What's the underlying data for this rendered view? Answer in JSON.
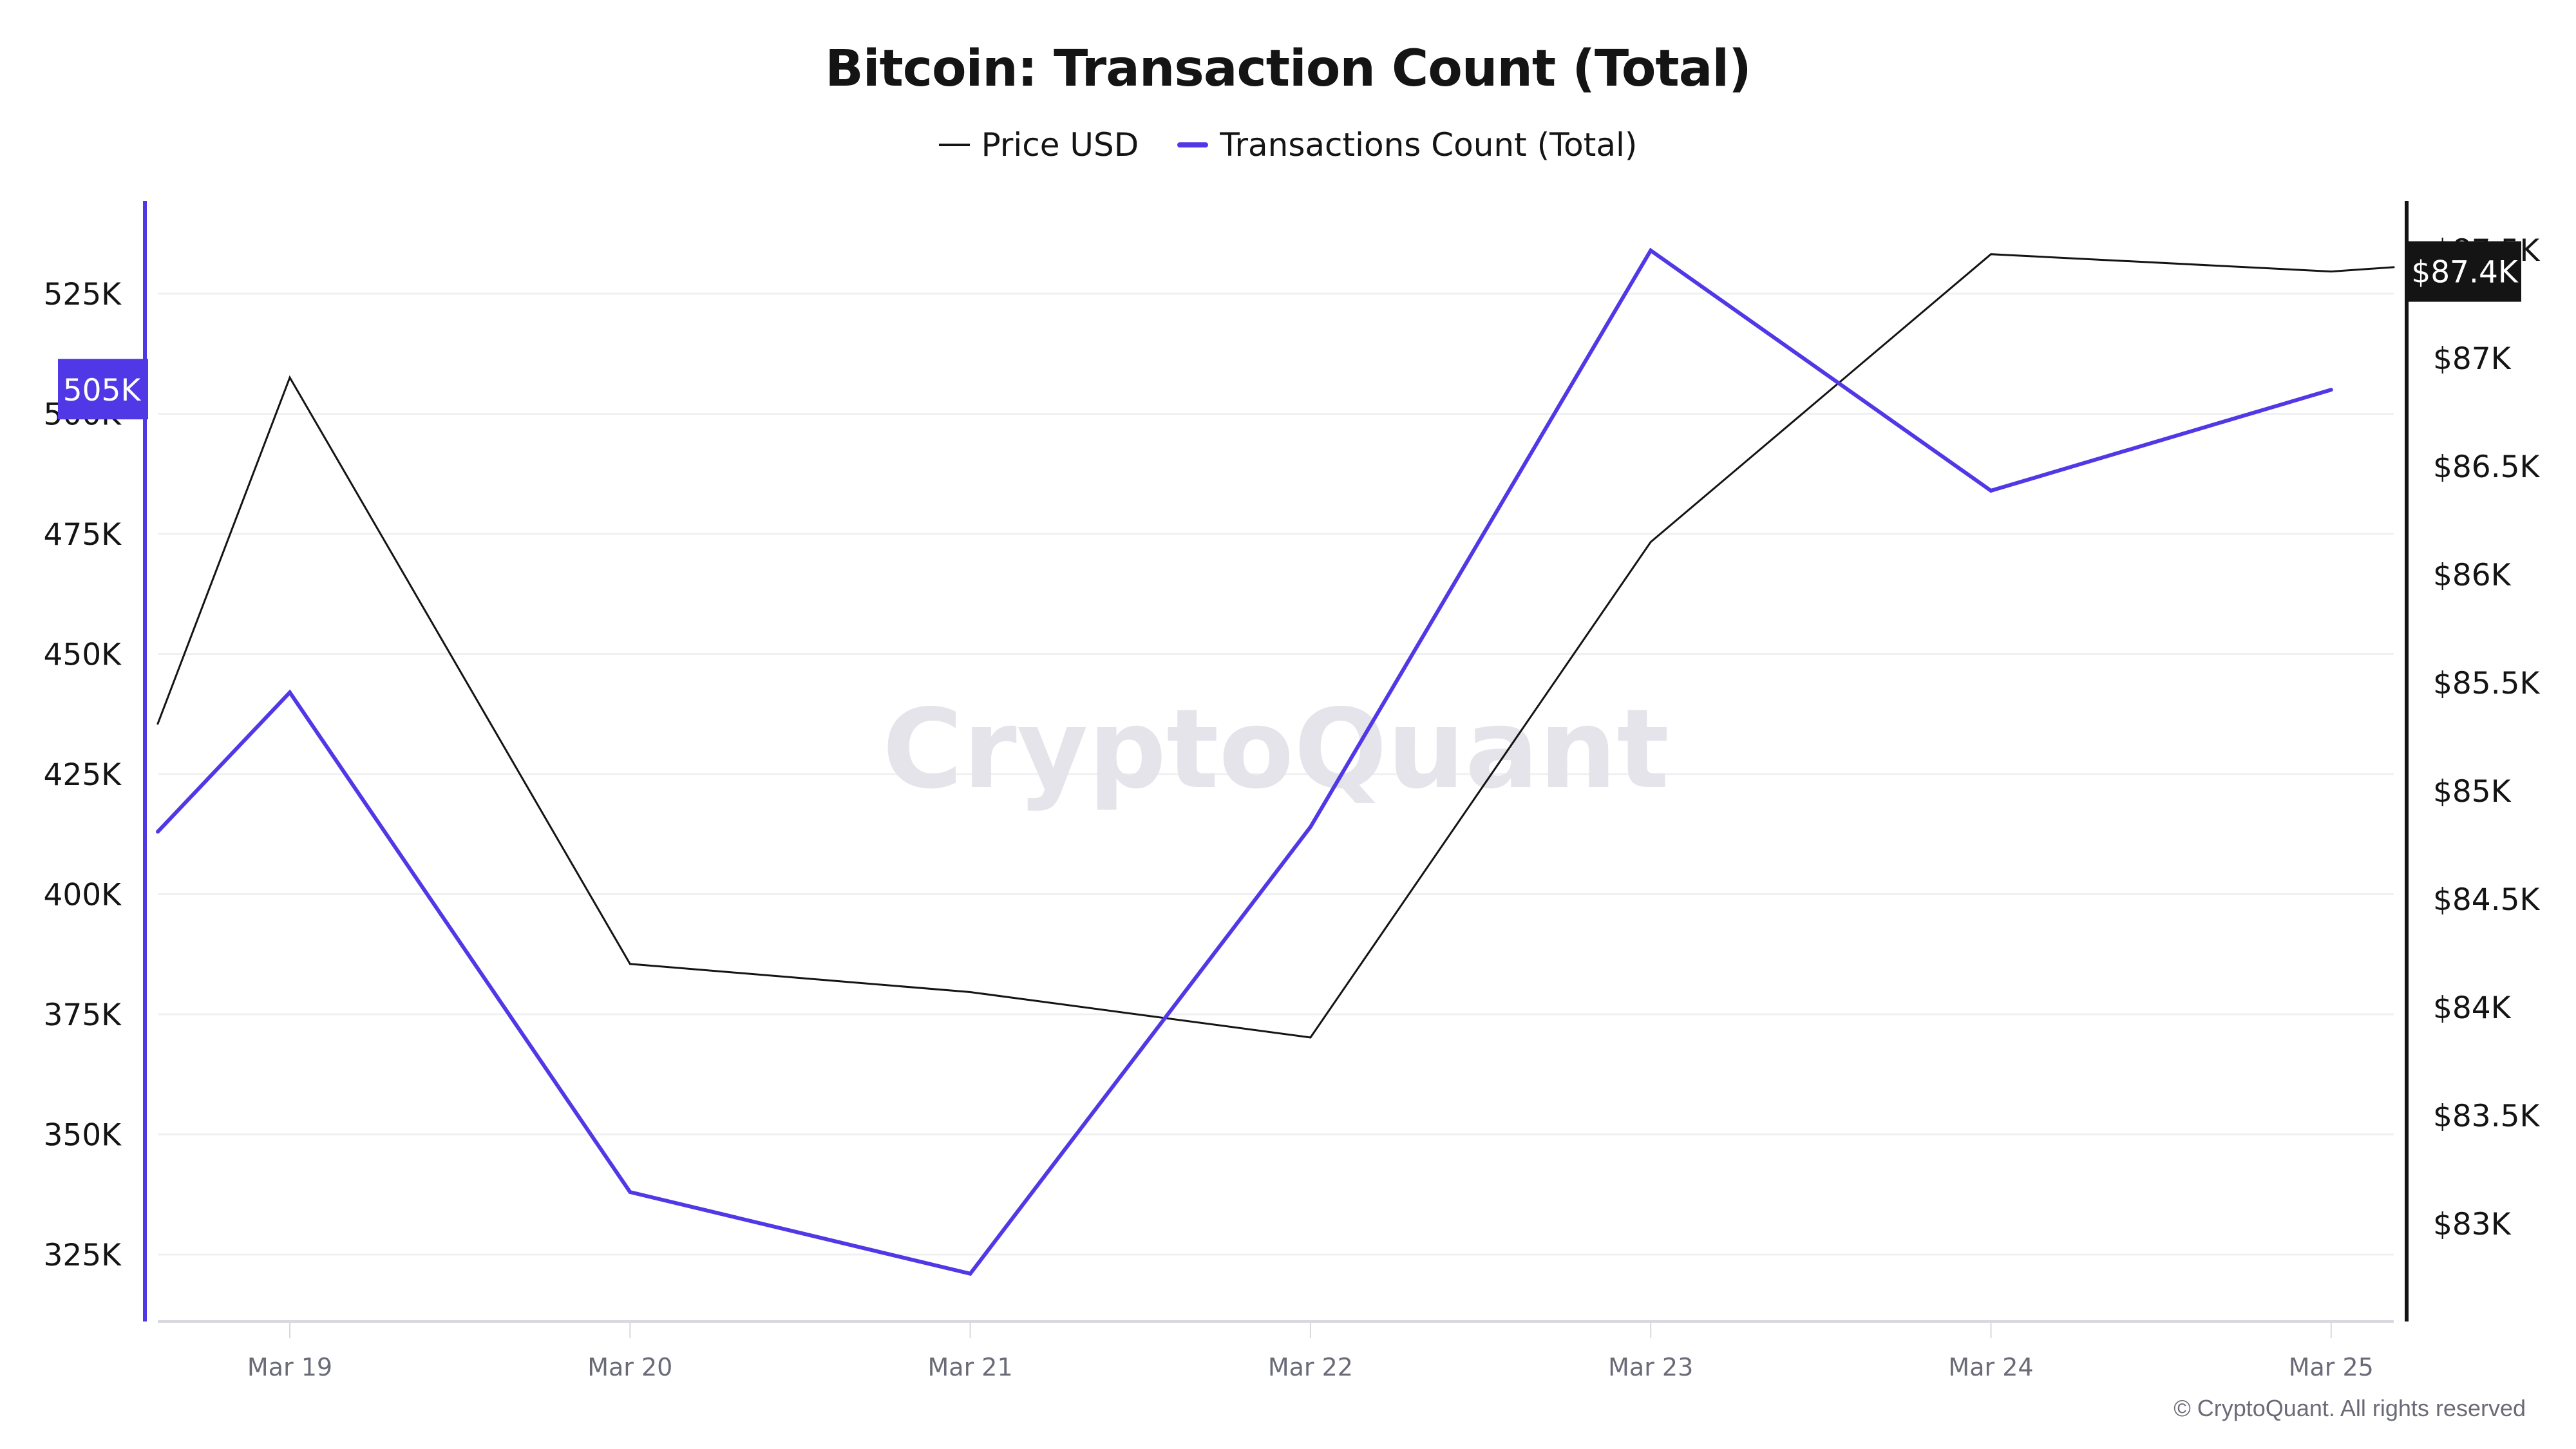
{
  "header": {
    "title": "Bitcoin: Transaction Count (Total)"
  },
  "legend": [
    {
      "label": "Price USD",
      "color": "#141414",
      "icon": "line-swatch-icon"
    },
    {
      "label": "Transactions Count (Total)",
      "color": "#5138e6",
      "icon": "line-swatch-icon"
    }
  ],
  "watermark": "CryptoQuant",
  "footer": {
    "copyright": "© CryptoQuant. All rights reserved"
  },
  "colors": {
    "price": "#141414",
    "transactions": "#5138e6",
    "grid": "#f0f0f2",
    "baseline": "#d8d8e0",
    "tick_text": "#6b6b78",
    "price_tag_bg": "#141414",
    "tx_tag_bg": "#5138e6"
  },
  "current_value_tags": {
    "transactions": "505K",
    "price": "$87.4K"
  },
  "chart_data": {
    "type": "line",
    "title": "Bitcoin: Transaction Count (Total)",
    "xlabel": "",
    "ylabel_left": "Transactions Count (Total)",
    "ylabel_right": "Price USD",
    "legend_position": "top-center",
    "grid": true,
    "categories": [
      "Mar 19",
      "Mar 20",
      "Mar 21",
      "Mar 22",
      "Mar 23",
      "Mar 24",
      "Mar 25"
    ],
    "x_ticks": [
      "Mar 19",
      "Mar 20",
      "Mar 21",
      "Mar 22",
      "Mar 23",
      "Mar 24",
      "Mar 25"
    ],
    "y_left_ticks": [
      "325K",
      "350K",
      "375K",
      "400K",
      "425K",
      "450K",
      "475K",
      "500K",
      "525K"
    ],
    "y_left_tick_values": [
      325000,
      350000,
      375000,
      400000,
      425000,
      450000,
      475000,
      500000,
      525000
    ],
    "y_right_ticks": [
      "$83K",
      "$83.5K",
      "$84K",
      "$84.5K",
      "$85K",
      "$85.5K",
      "$86K",
      "$86.5K",
      "$87K",
      "$87.5K"
    ],
    "y_right_tick_values": [
      83000,
      83500,
      84000,
      84500,
      85000,
      85500,
      86000,
      86500,
      87000,
      87500
    ],
    "ylim_left": [
      313000,
      543000
    ],
    "ylim_right": [
      82550,
      87740
    ],
    "series": [
      {
        "name": "Price USD",
        "axis": "right",
        "color": "#141414",
        "left_edge_value": 85310,
        "values": [
          86910,
          84200,
          84070,
          83860,
          86150,
          87480,
          87400
        ],
        "right_edge_value": 87420
      },
      {
        "name": "Transactions Count (Total)",
        "axis": "left",
        "color": "#5138e6",
        "left_edge_value": 413000,
        "values": [
          442000,
          338000,
          321000,
          414000,
          534000,
          484000,
          505000
        ]
      }
    ]
  }
}
